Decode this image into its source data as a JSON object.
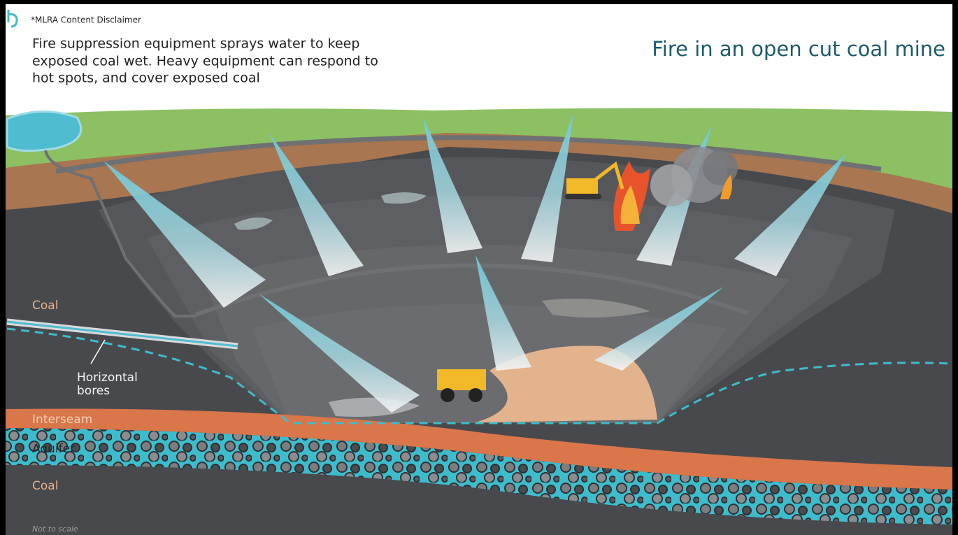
{
  "header": {
    "disclaimer": "*MLRA Content Disclaimer",
    "description": [
      "Fire suppression equipment sprays water to keep",
      "exposed coal wet. Heavy equipment can respond to",
      "hot spots, and cover exposed coal"
    ],
    "title": "Fire in an open cut coal mine"
  },
  "labels": {
    "coal_upper": "Coal",
    "horizontal_bores": [
      "Horizontal",
      "bores"
    ],
    "interseam": "Interseam",
    "aquifer": "Aquifer",
    "coal_lower": "Coal",
    "note": "Not to scale"
  }
}
